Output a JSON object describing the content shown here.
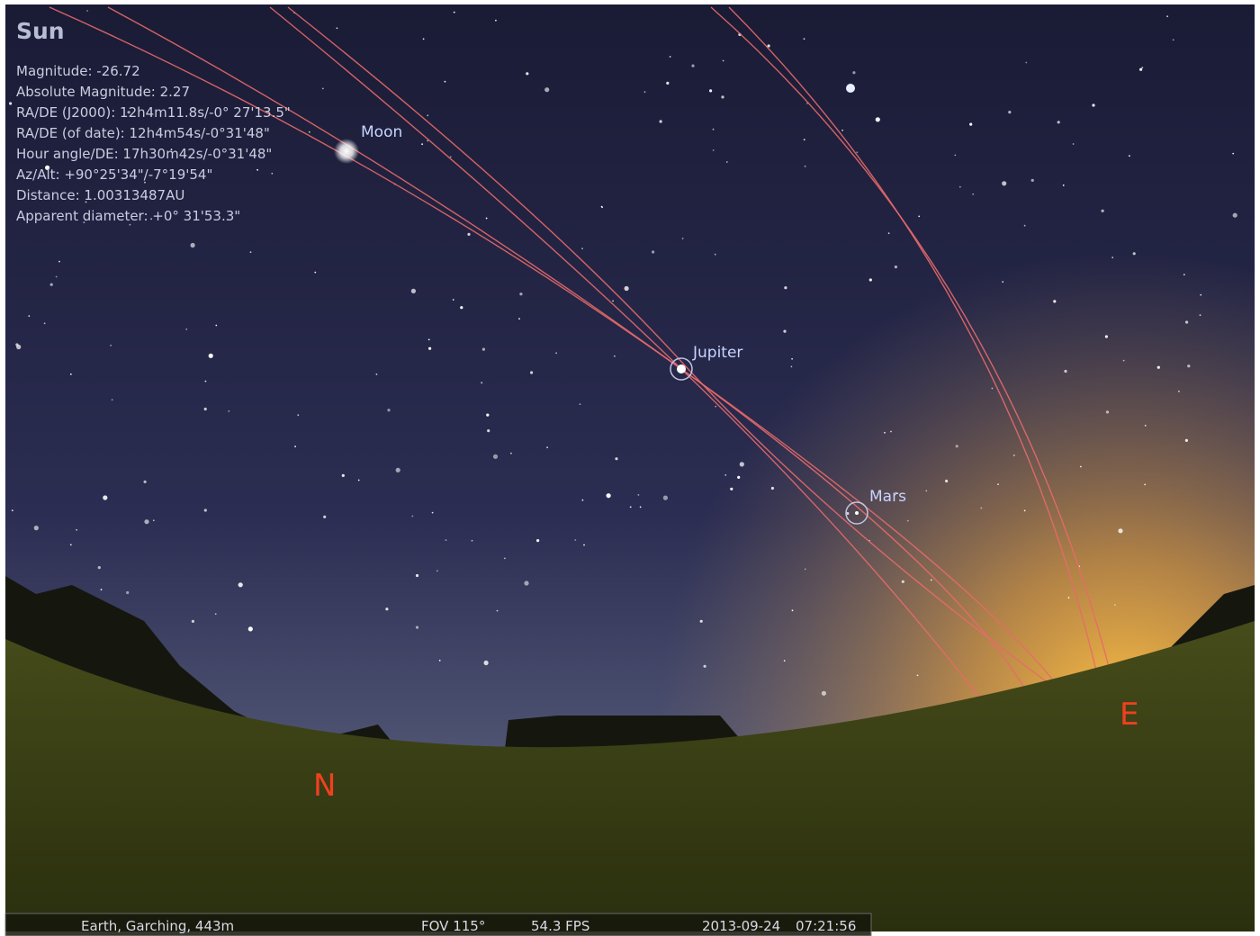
{
  "info_panel": {
    "title": "Sun",
    "lines": [
      "Magnitude: -26.72",
      "Absolute Magnitude: 2.27",
      "RA/DE (J2000): 12h4m11.8s/-0° 27'13.5\"",
      "RA/DE (of date): 12h4m54s/-0°31'48\"",
      "Hour angle/DE: 17h30m42s/-0°31'48\"",
      "Az/Alt: +90°25'34\"/-7°19'54\"",
      "Distance: 1.00313487AU",
      "Apparent diameter: +0° 31'53.3\""
    ]
  },
  "sky_labels": {
    "moon": "Moon",
    "jupiter": "Jupiter",
    "mars": "Mars"
  },
  "cardinals": {
    "north": "N",
    "east": "E"
  },
  "status_bar": {
    "location": "Earth, Garching, 443m",
    "fov": "FOV 115°",
    "fps": "54.3 FPS",
    "date": "2013-09-24",
    "time": "07:21:56"
  }
}
